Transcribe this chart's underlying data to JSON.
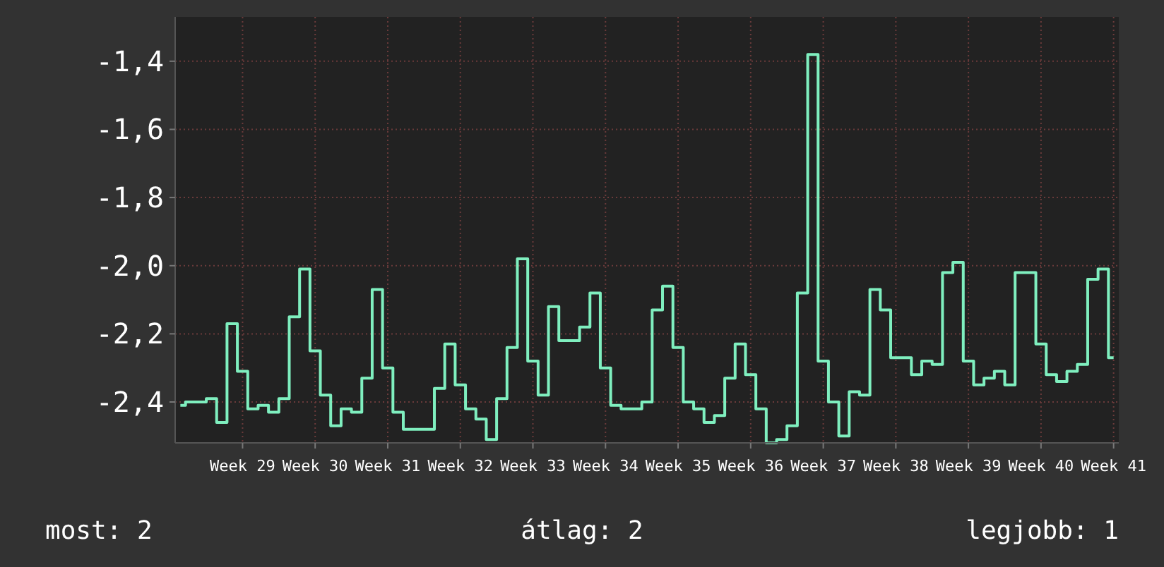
{
  "chart_data": {
    "type": "step",
    "grid": true,
    "marker": "none",
    "line_style": "solid",
    "ylim": [
      -2.52,
      -1.27
    ],
    "categories": [
      null,
      null,
      null,
      null,
      null,
      null,
      "Week 29",
      null,
      null,
      null,
      null,
      null,
      null,
      "Week 30",
      null,
      null,
      null,
      null,
      null,
      null,
      "Week 31",
      null,
      null,
      null,
      null,
      null,
      null,
      "Week 32",
      null,
      null,
      null,
      null,
      null,
      null,
      "Week 33",
      null,
      null,
      null,
      null,
      null,
      null,
      "Week 34",
      null,
      null,
      null,
      null,
      null,
      null,
      "Week 35",
      null,
      null,
      null,
      null,
      null,
      null,
      "Week 36",
      null,
      null,
      null,
      null,
      null,
      null,
      "Week 37",
      null,
      null,
      null,
      null,
      null,
      null,
      "Week 38",
      null,
      null,
      null,
      null,
      null,
      null,
      "Week 39",
      null,
      null,
      null,
      null,
      null,
      null,
      "Week 40",
      null,
      null,
      null,
      null,
      null,
      null,
      "Week 41"
    ],
    "yticks": [
      {
        "value": -1.4,
        "label": "-1,4"
      },
      {
        "value": -1.6,
        "label": "-1,6"
      },
      {
        "value": -1.8,
        "label": "-1,8"
      },
      {
        "value": -2.0,
        "label": "-2,0"
      },
      {
        "value": -2.2,
        "label": "-2,2"
      },
      {
        "value": -2.4,
        "label": "-2,4"
      }
    ],
    "annotations": [
      "most: 2",
      "átlag: 2",
      "legjobb: 1"
    ],
    "series": [
      {
        "color": "#7fefbf",
        "values": [
          -2.41,
          -2.4,
          -2.4,
          -2.39,
          -2.46,
          -2.17,
          -2.31,
          -2.42,
          -2.41,
          -2.43,
          -2.39,
          -2.15,
          -2.01,
          -2.25,
          -2.38,
          -2.47,
          -2.42,
          -2.43,
          -2.33,
          -2.07,
          -2.3,
          -2.43,
          -2.48,
          -2.48,
          -2.48,
          -2.36,
          -2.23,
          -2.35,
          -2.42,
          -2.45,
          -2.51,
          -2.39,
          -2.24,
          -1.98,
          -2.28,
          -2.38,
          -2.12,
          -2.22,
          -2.22,
          -2.18,
          -2.08,
          -2.3,
          -2.41,
          -2.42,
          -2.42,
          -2.4,
          -2.13,
          -2.06,
          -2.24,
          -2.4,
          -2.42,
          -2.46,
          -2.44,
          -2.33,
          -2.23,
          -2.32,
          -2.42,
          -2.52,
          -2.51,
          -2.47,
          -2.08,
          -1.38,
          -2.28,
          -2.4,
          -2.5,
          -2.37,
          -2.38,
          -2.07,
          -2.13,
          -2.27,
          -2.27,
          -2.32,
          -2.28,
          -2.29,
          -2.02,
          -1.99,
          -2.28,
          -2.35,
          -2.33,
          -2.31,
          -2.35,
          -2.02,
          -2.02,
          -2.23,
          -2.32,
          -2.34,
          -2.31,
          -2.29,
          -2.04,
          -2.01,
          -2.27
        ]
      }
    ]
  }
}
